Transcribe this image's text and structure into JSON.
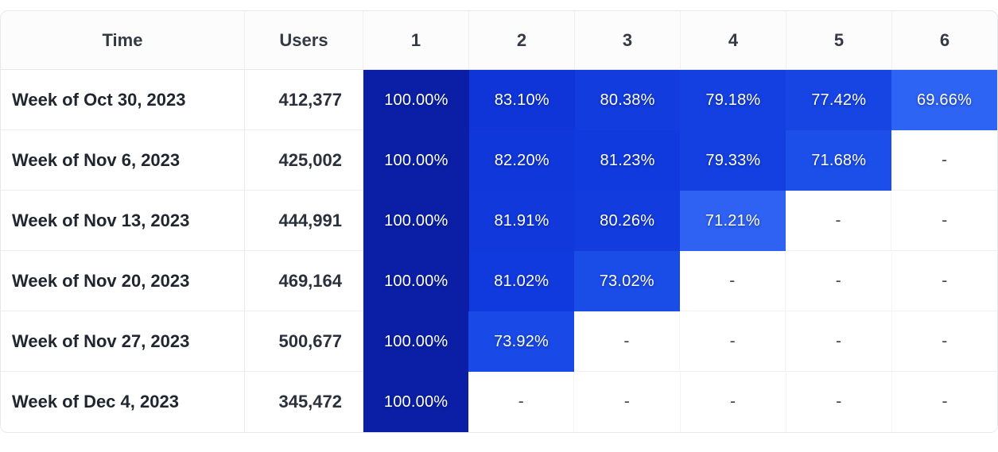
{
  "chart_data": {
    "type": "heatmap",
    "description": "Weekly cohort retention table",
    "columns": [
      "Time",
      "Users",
      "1",
      "2",
      "3",
      "4",
      "5",
      "6"
    ],
    "empty_value": "-",
    "color_scale": {
      "high": "#0a1fa5",
      "mid": "#1138dc",
      "low": "#2f63f4"
    },
    "rows": [
      {
        "time": "Week of Oct 30, 2023",
        "users": "412,377",
        "retention": [
          {
            "value": "100.00%",
            "color": "#0a1fa5"
          },
          {
            "value": "83.10%",
            "color": "#0f35d8"
          },
          {
            "value": "80.38%",
            "color": "#123cde"
          },
          {
            "value": "79.18%",
            "color": "#1440e1"
          },
          {
            "value": "77.42%",
            "color": "#1645e4"
          },
          {
            "value": "69.66%",
            "color": "#2e64f4"
          }
        ]
      },
      {
        "time": "Week of Nov 6, 2023",
        "users": "425,002",
        "retention": [
          {
            "value": "100.00%",
            "color": "#0a1fa5"
          },
          {
            "value": "82.20%",
            "color": "#1037da"
          },
          {
            "value": "81.23%",
            "color": "#113ade"
          },
          {
            "value": "79.33%",
            "color": "#1440e1"
          },
          {
            "value": "71.68%",
            "color": "#1c4fea"
          }
        ]
      },
      {
        "time": "Week of Nov 13, 2023",
        "users": "444,991",
        "retention": [
          {
            "value": "100.00%",
            "color": "#0a1fa5"
          },
          {
            "value": "81.91%",
            "color": "#1038db"
          },
          {
            "value": "80.26%",
            "color": "#123cde"
          },
          {
            "value": "71.21%",
            "color": "#2f62f3"
          }
        ]
      },
      {
        "time": "Week of Nov 20, 2023",
        "users": "469,164",
        "retention": [
          {
            "value": "100.00%",
            "color": "#0a1fa5"
          },
          {
            "value": "81.02%",
            "color": "#113ade"
          },
          {
            "value": "73.02%",
            "color": "#1a4ce8"
          }
        ]
      },
      {
        "time": "Week of Nov 27, 2023",
        "users": "500,677",
        "retention": [
          {
            "value": "100.00%",
            "color": "#0a1fa5"
          },
          {
            "value": "73.92%",
            "color": "#194ae7"
          }
        ]
      },
      {
        "time": "Week of Dec 4, 2023",
        "users": "345,472",
        "retention": [
          {
            "value": "100.00%",
            "color": "#0a1fa5"
          }
        ]
      }
    ]
  }
}
